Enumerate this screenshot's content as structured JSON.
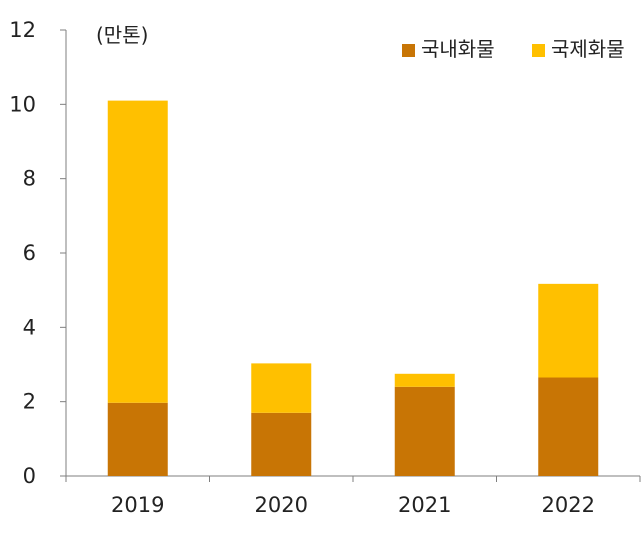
{
  "chart_data": {
    "type": "bar",
    "stacked": true,
    "unit_label": "(만톤)",
    "categories": [
      "2019",
      "2020",
      "2021",
      "2022"
    ],
    "series": [
      {
        "name": "국내화물",
        "color": "#C87505",
        "values": [
          1.97,
          1.7,
          2.4,
          2.65
        ]
      },
      {
        "name": "국제화물",
        "color": "#FFC000",
        "values": [
          8.13,
          1.33,
          0.35,
          2.52
        ]
      }
    ],
    "ylim": [
      0,
      12
    ],
    "yticks": [
      "0",
      "2",
      "4",
      "6",
      "8",
      "10",
      "12"
    ],
    "grid": false,
    "legend_position": "top-right"
  }
}
